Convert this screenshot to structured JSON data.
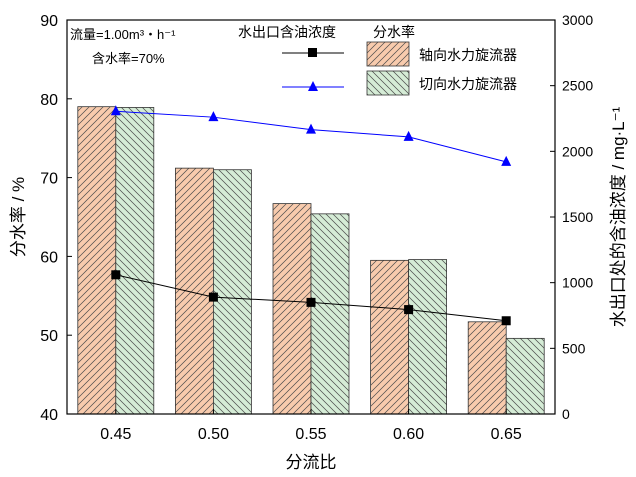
{
  "chart_data": {
    "type": "bar",
    "xlabel": "分流比",
    "ylabel_left": "分水率 / %",
    "ylabel_right": "水出口处的含油浓度 / mg·L⁻¹",
    "categories": [
      "0.45",
      "0.50",
      "0.55",
      "0.60",
      "0.65"
    ],
    "ylim_left": [
      40,
      90
    ],
    "yticks_left": [
      "40",
      "50",
      "60",
      "70",
      "80",
      "90"
    ],
    "ylim_right": [
      0,
      3000
    ],
    "yticks_right": [
      "0",
      "500",
      "1000",
      "1500",
      "2000",
      "2500",
      "3000"
    ],
    "notes": [
      "流量=1.00m³・h⁻¹",
      "含水率=70%"
    ],
    "legend_headers": [
      "水出口含油浓度",
      "分水率"
    ],
    "series": [
      {
        "name": "轴向水力旋流器",
        "kind": "bar",
        "axis": "left",
        "color": "#f8cbad",
        "values": [
          79.0,
          71.2,
          66.7,
          59.5,
          51.7
        ]
      },
      {
        "name": "切向水力旋流器",
        "kind": "bar",
        "axis": "left",
        "color": "#d5ecd6",
        "values": [
          78.9,
          71.0,
          65.4,
          59.6,
          49.6
        ]
      },
      {
        "name": "",
        "kind": "line",
        "marker": "square",
        "axis": "right",
        "color": "#000000",
        "values": [
          1060,
          890,
          850,
          795,
          710
        ]
      },
      {
        "name": "",
        "kind": "line",
        "marker": "triangle",
        "axis": "right",
        "color": "#0000ff",
        "values": [
          2305,
          2260,
          2165,
          2110,
          1920
        ]
      }
    ]
  }
}
